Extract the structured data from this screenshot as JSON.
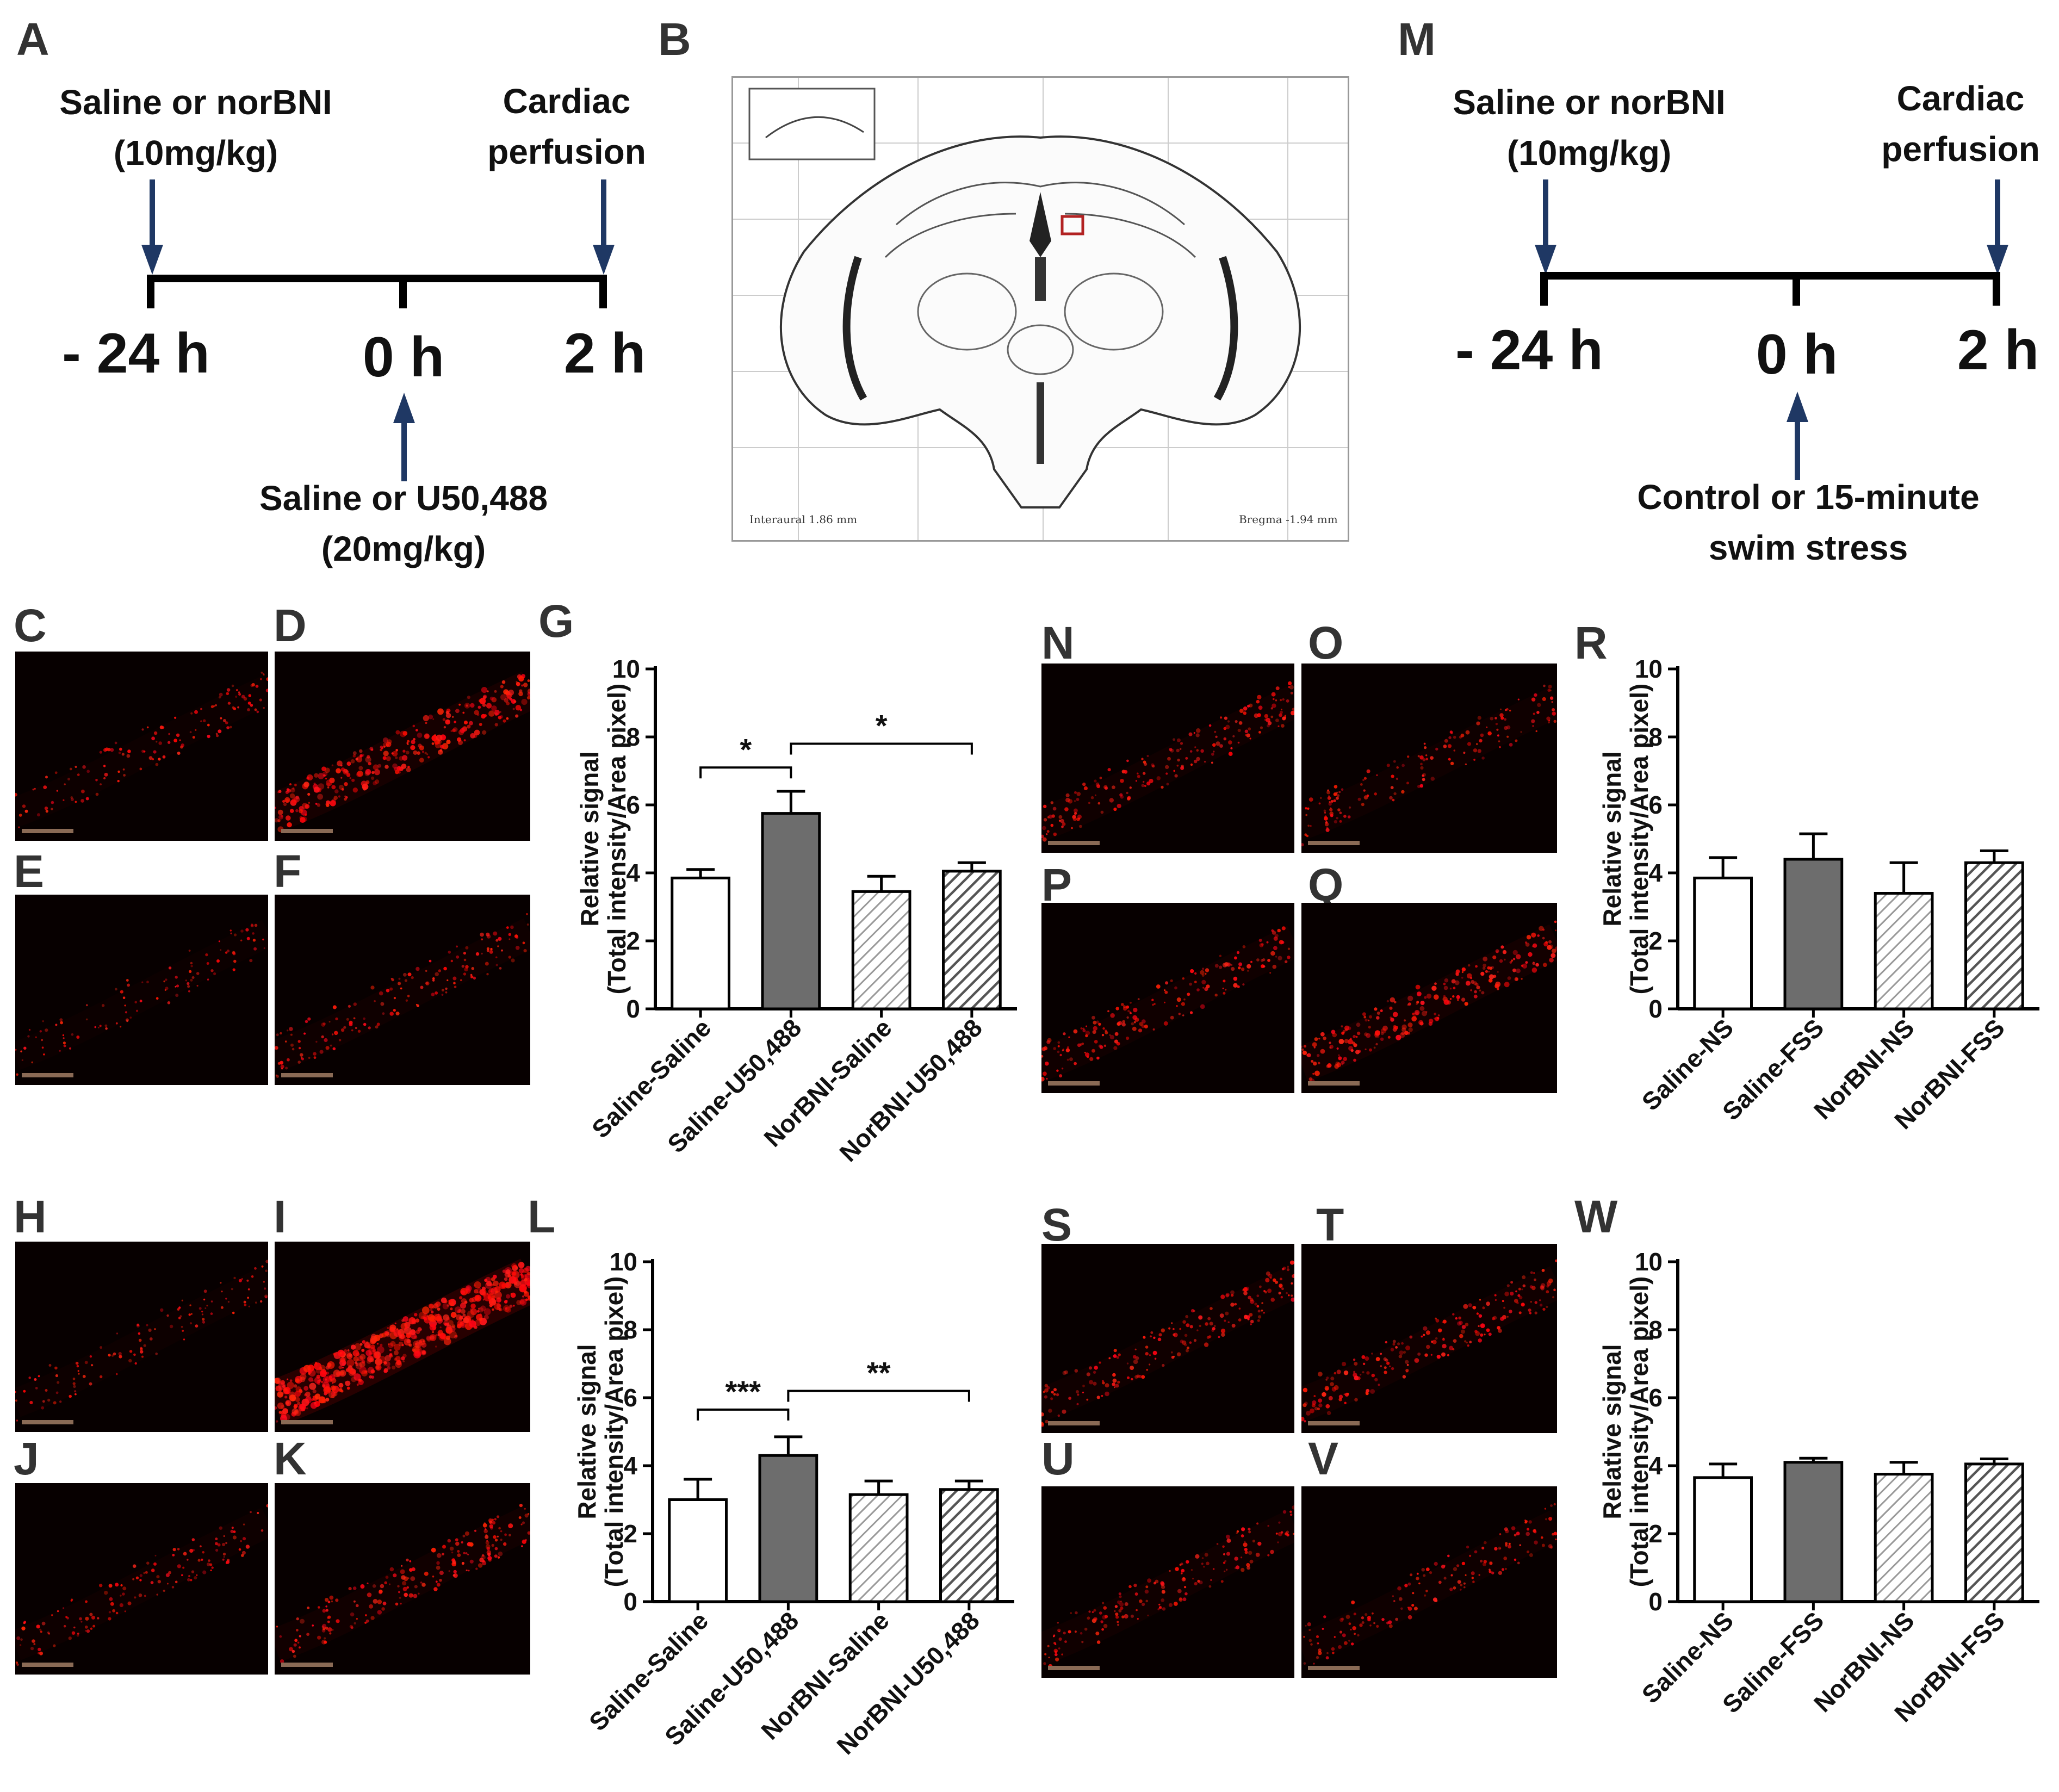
{
  "panel_letters": {
    "A": "A",
    "B": "B",
    "C": "C",
    "D": "D",
    "E": "E",
    "F": "F",
    "G": "G",
    "H": "H",
    "I": "I",
    "J": "J",
    "K": "K",
    "L": "L",
    "M": "M",
    "N": "N",
    "O": "O",
    "P": "P",
    "Q": "Q",
    "R": "R",
    "S": "S",
    "T": "T",
    "U": "U",
    "V": "V",
    "W": "W"
  },
  "timeline_A": {
    "pre_label_1": "Saline or norBNI",
    "pre_label_2": "(10mg/kg)",
    "end_label_1": "Cardiac",
    "end_label_2": "perfusion",
    "tick_1": "- 24 h",
    "tick_2": "0 h",
    "tick_3": "2 h",
    "mid_label_1": "Saline or U50,488",
    "mid_label_2": "(20mg/kg)",
    "arrow_color": "#1f3864"
  },
  "timeline_M": {
    "pre_label_1": "Saline or norBNI",
    "pre_label_2": "(10mg/kg)",
    "end_label_1": "Cardiac",
    "end_label_2": "perfusion",
    "tick_1": "- 24 h",
    "tick_2": "0 h",
    "tick_3": "2 h",
    "mid_label_1": "Control or 15-minute",
    "mid_label_2": "swim stress",
    "arrow_color": "#1f3864"
  },
  "atlas": {
    "interaural": "Interaural 1.86 mm",
    "bregma": "Bregma -1.94 mm",
    "roi_color": "#b22222"
  },
  "chart_data": [
    {
      "panel": "G",
      "type": "bar",
      "categories": [
        "Saline-Saline",
        "Saline-U50,488",
        "NorBNI-Saline",
        "NorBNI-U50,488"
      ],
      "values": [
        3.85,
        5.75,
        3.45,
        4.05
      ],
      "errors": [
        0.25,
        0.65,
        0.45,
        0.25
      ],
      "fills": [
        "white",
        "gray",
        "hatch-light",
        "hatch-dark"
      ],
      "ylabel_1": "Relative signal",
      "ylabel_2": "(Total intensity/Area pixel)",
      "yticks": [
        "0",
        "2",
        "4",
        "6",
        "8",
        "10"
      ],
      "ylim": [
        0,
        10
      ],
      "significance": [
        {
          "from": 0,
          "to": 1,
          "label": "*",
          "y": 7.1
        },
        {
          "from": 1,
          "to": 3,
          "label": "*",
          "y": 7.8
        }
      ]
    },
    {
      "panel": "R",
      "type": "bar",
      "categories": [
        "Saline-NS",
        "Saline-FSS",
        "NorBNI-NS",
        "NorBNI-FSS"
      ],
      "values": [
        3.85,
        4.4,
        3.4,
        4.3
      ],
      "errors": [
        0.6,
        0.75,
        0.9,
        0.35
      ],
      "fills": [
        "white",
        "gray",
        "hatch-light",
        "hatch-dark"
      ],
      "ylabel_1": "Relative signal",
      "ylabel_2": "(Total intensity/Area pixel)",
      "yticks": [
        "0",
        "2",
        "4",
        "6",
        "8",
        "10"
      ],
      "ylim": [
        0,
        10
      ],
      "significance": []
    },
    {
      "panel": "L",
      "type": "bar",
      "categories": [
        "Saline-Saline",
        "Saline-U50,488",
        "NorBNI-Saline",
        "NorBNI-U50,488"
      ],
      "values": [
        3.0,
        4.3,
        3.15,
        3.3
      ],
      "errors": [
        0.6,
        0.55,
        0.4,
        0.25
      ],
      "fills": [
        "white",
        "gray",
        "hatch-light",
        "hatch-dark"
      ],
      "ylabel_1": "Relative signal",
      "ylabel_2": "(Total intensity/Area pixel)",
      "yticks": [
        "0",
        "2",
        "4",
        "6",
        "8",
        "10"
      ],
      "ylim": [
        0,
        10
      ],
      "significance": [
        {
          "from": 0,
          "to": 1,
          "label": "***",
          "y": 5.65
        },
        {
          "from": 1,
          "to": 3,
          "label": "**",
          "y": 6.2
        }
      ]
    },
    {
      "panel": "W",
      "type": "bar",
      "categories": [
        "Saline-NS",
        "Saline-FSS",
        "NorBNI-NS",
        "NorBNI-FSS"
      ],
      "values": [
        3.65,
        4.1,
        3.75,
        4.05
      ],
      "errors": [
        0.4,
        0.12,
        0.35,
        0.15
      ],
      "fills": [
        "white",
        "gray",
        "hatch-light",
        "hatch-dark"
      ],
      "ylabel_1": "Relative signal",
      "ylabel_2": "(Total intensity/Area pixel)",
      "yticks": [
        "0",
        "2",
        "4",
        "6",
        "8",
        "10"
      ],
      "ylim": [
        0,
        10
      ],
      "significance": []
    }
  ]
}
